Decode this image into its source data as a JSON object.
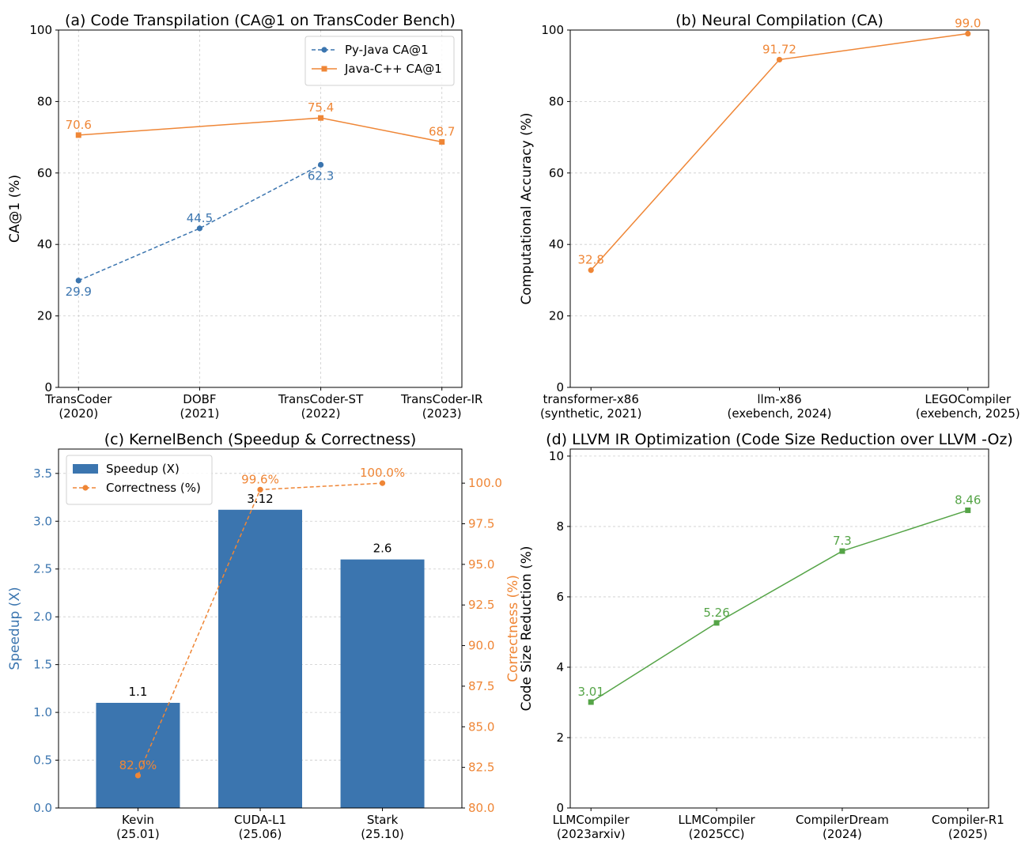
{
  "colors": {
    "blue": "#3b75af",
    "orange": "#ef8636",
    "green": "#55a447",
    "grid": "#cccccc",
    "axis": "#000000"
  },
  "chart_data": [
    {
      "id": "a",
      "type": "line",
      "title": "(a) Code Transpilation (CA@1 on TransCoder Bench)",
      "xlabel": "",
      "ylabel": "CA@1 (%)",
      "categories": [
        "TransCoder\n(2020)",
        "DOBF\n(2021)",
        "TransCoder-ST\n(2022)",
        "TransCoder-IR\n(2023)"
      ],
      "ylim": [
        0,
        100
      ],
      "yticks": [
        0,
        20,
        40,
        60,
        80,
        100
      ],
      "grid": "both",
      "legend": "top-right",
      "series": [
        {
          "name": "Py-Java CA@1",
          "color": "blue",
          "style": "dashed",
          "marker": "circle",
          "x": [
            0,
            1,
            2
          ],
          "values": [
            29.9,
            44.5,
            62.3
          ],
          "labels": [
            "29.9",
            "44.5",
            "62.3"
          ],
          "label_pos": [
            "below",
            "above",
            "below"
          ]
        },
        {
          "name": "Java-C++ CA@1",
          "color": "orange",
          "style": "solid",
          "marker": "square",
          "x": [
            0,
            2,
            3
          ],
          "values": [
            70.6,
            75.4,
            68.7
          ],
          "labels": [
            "70.6",
            "75.4",
            "68.7"
          ],
          "label_pos": [
            "above",
            "above",
            "above"
          ]
        }
      ]
    },
    {
      "id": "b",
      "type": "line",
      "title": "(b) Neural Compilation (CA)",
      "xlabel": "",
      "ylabel": "Computational Accuracy (%)",
      "categories": [
        "transformer-x86\n(synthetic, 2021)",
        "llm-x86\n(exebench, 2024)",
        "LEGOCompiler\n(exebench, 2025)"
      ],
      "ylim": [
        0,
        100
      ],
      "yticks": [
        0,
        20,
        40,
        60,
        80,
        100
      ],
      "grid": "y",
      "series": [
        {
          "name": "CA",
          "color": "orange",
          "style": "solid",
          "marker": "circle",
          "x": [
            0,
            1,
            2
          ],
          "values": [
            32.8,
            91.72,
            99.0
          ],
          "labels": [
            "32.8",
            "91.72",
            "99.0"
          ],
          "label_pos": [
            "above",
            "above",
            "above"
          ]
        }
      ]
    },
    {
      "id": "c",
      "type": "bar",
      "title": "(c) KernelBench (Speedup & Correctness)",
      "xlabel": "",
      "ylabel": "Speedup (X)",
      "ylabel_right": "Correctness (%)",
      "categories": [
        "Kevin\n(25.01)",
        "CUDA-L1\n(25.06)",
        "Stark\n(25.10)"
      ],
      "ylim": [
        0,
        3.755
      ],
      "yticks": [
        0.0,
        0.5,
        1.0,
        1.5,
        2.0,
        2.5,
        3.0,
        3.5
      ],
      "ylim_right": [
        80,
        102.1
      ],
      "yticks_right": [
        80.0,
        82.5,
        85.0,
        87.5,
        90.0,
        92.5,
        95.0,
        97.5,
        100.0
      ],
      "grid": "y",
      "legend": "top-left",
      "bars": {
        "name": "Speedup (X)",
        "color": "blue",
        "values": [
          1.1,
          3.12,
          2.6
        ],
        "labels": [
          "1.1",
          "3.12",
          "2.6"
        ]
      },
      "series": [
        {
          "name": "Correctness (%)",
          "color": "orange",
          "style": "dashed",
          "marker": "circle",
          "axis": "right",
          "x": [
            0,
            1,
            2
          ],
          "values": [
            82.0,
            99.6,
            100.0
          ],
          "labels": [
            "82.0%",
            "99.6%",
            "100.0%"
          ],
          "label_pos": [
            "above",
            "above",
            "above"
          ]
        }
      ]
    },
    {
      "id": "d",
      "type": "line",
      "title": "(d) LLVM IR Optimization (Code Size Reduction over LLVM -Oz)",
      "xlabel": "",
      "ylabel": "Code Size Reduction (%)",
      "categories": [
        "LLMCompiler\n(2023arxiv)",
        "LLMCompiler\n(2025CC)",
        "CompilerDream\n(2024)",
        "Compiler-R1\n(2025)"
      ],
      "ylim": [
        0,
        10.2
      ],
      "yticks": [
        0,
        2,
        4,
        6,
        8,
        10
      ],
      "grid": "y",
      "series": [
        {
          "name": "Code Size Reduction",
          "color": "green",
          "style": "solid",
          "marker": "square",
          "x": [
            0,
            1,
            2,
            3
          ],
          "values": [
            3.01,
            5.26,
            7.3,
            8.46
          ],
          "labels": [
            "3.01",
            "5.26",
            "7.3",
            "8.46"
          ],
          "label_pos": [
            "above",
            "above",
            "above",
            "above"
          ]
        }
      ]
    }
  ]
}
